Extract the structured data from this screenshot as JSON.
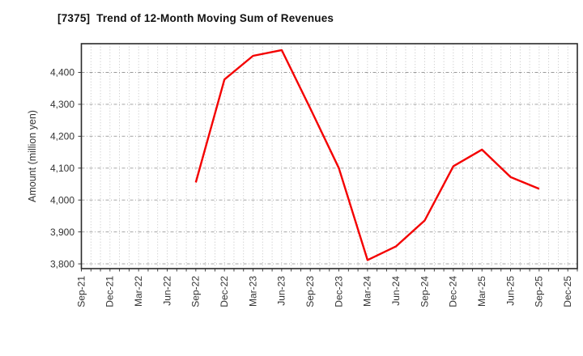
{
  "title": "[7375]  Trend of 12-Month Moving Sum of Revenues",
  "chart_data": {
    "type": "line",
    "title": "[7375]  Trend of 12-Month Moving Sum of Revenues",
    "xlabel": "",
    "ylabel": "Amount (million yen)",
    "grid": "on",
    "legend_position": "none",
    "x_tick_labels": [
      "Sep-21",
      "Dec-21",
      "Mar-22",
      "Jun-22",
      "Sep-22",
      "Dec-22",
      "Mar-23",
      "Jun-23",
      "Sep-23",
      "Dec-23",
      "Mar-24",
      "Jun-24",
      "Sep-24",
      "Dec-24",
      "Mar-25",
      "Jun-25",
      "Sep-25",
      "Dec-25"
    ],
    "x_domain_months": [
      0,
      52
    ],
    "months_per_tick": 3,
    "minor_vertical_grid_every_months": 1,
    "ylim": [
      3785,
      4490
    ],
    "y_ticks": [
      {
        "value": 3800,
        "label": "3,800"
      },
      {
        "value": 3900,
        "label": "3,900"
      },
      {
        "value": 4000,
        "label": "4,000"
      },
      {
        "value": 4100,
        "label": "4,100"
      },
      {
        "value": 4200,
        "label": "4,200"
      },
      {
        "value": 4300,
        "label": "4,300"
      },
      {
        "value": 4400,
        "label": "4,400"
      }
    ],
    "series": [
      {
        "name": "12-month moving sum of revenues",
        "color": "#f40000",
        "points": [
          {
            "x_month": 12,
            "x_label": "Sep-22",
            "y": 4055
          },
          {
            "x_month": 15,
            "x_label": "Dec-22",
            "y": 4378
          },
          {
            "x_month": 18,
            "x_label": "Mar-23",
            "y": 4452
          },
          {
            "x_month": 21,
            "x_label": "Jun-23",
            "y": 4470
          },
          {
            "x_month": 24,
            "x_label": "Sep-23",
            "y": 4287
          },
          {
            "x_month": 27,
            "x_label": "Dec-23",
            "y": 4100
          },
          {
            "x_month": 30,
            "x_label": "Mar-24",
            "y": 3812
          },
          {
            "x_month": 33,
            "x_label": "Jun-24",
            "y": 3855
          },
          {
            "x_month": 36,
            "x_label": "Sep-24",
            "y": 3936
          },
          {
            "x_month": 39,
            "x_label": "Dec-24",
            "y": 4106
          },
          {
            "x_month": 42,
            "x_label": "Mar-25",
            "y": 4158
          },
          {
            "x_month": 45,
            "x_label": "Jun-25",
            "y": 4072
          },
          {
            "x_month": 48,
            "x_label": "Sep-25",
            "y": 4035
          }
        ]
      }
    ],
    "colors": {
      "line": "#f40000",
      "axis_border": "#2a2a2a",
      "grid_horizontal": "#999999",
      "grid_vertical": "#b3b3b3",
      "tick_text": "#333333",
      "title_text": "#111111",
      "background": "#ffffff"
    }
  }
}
